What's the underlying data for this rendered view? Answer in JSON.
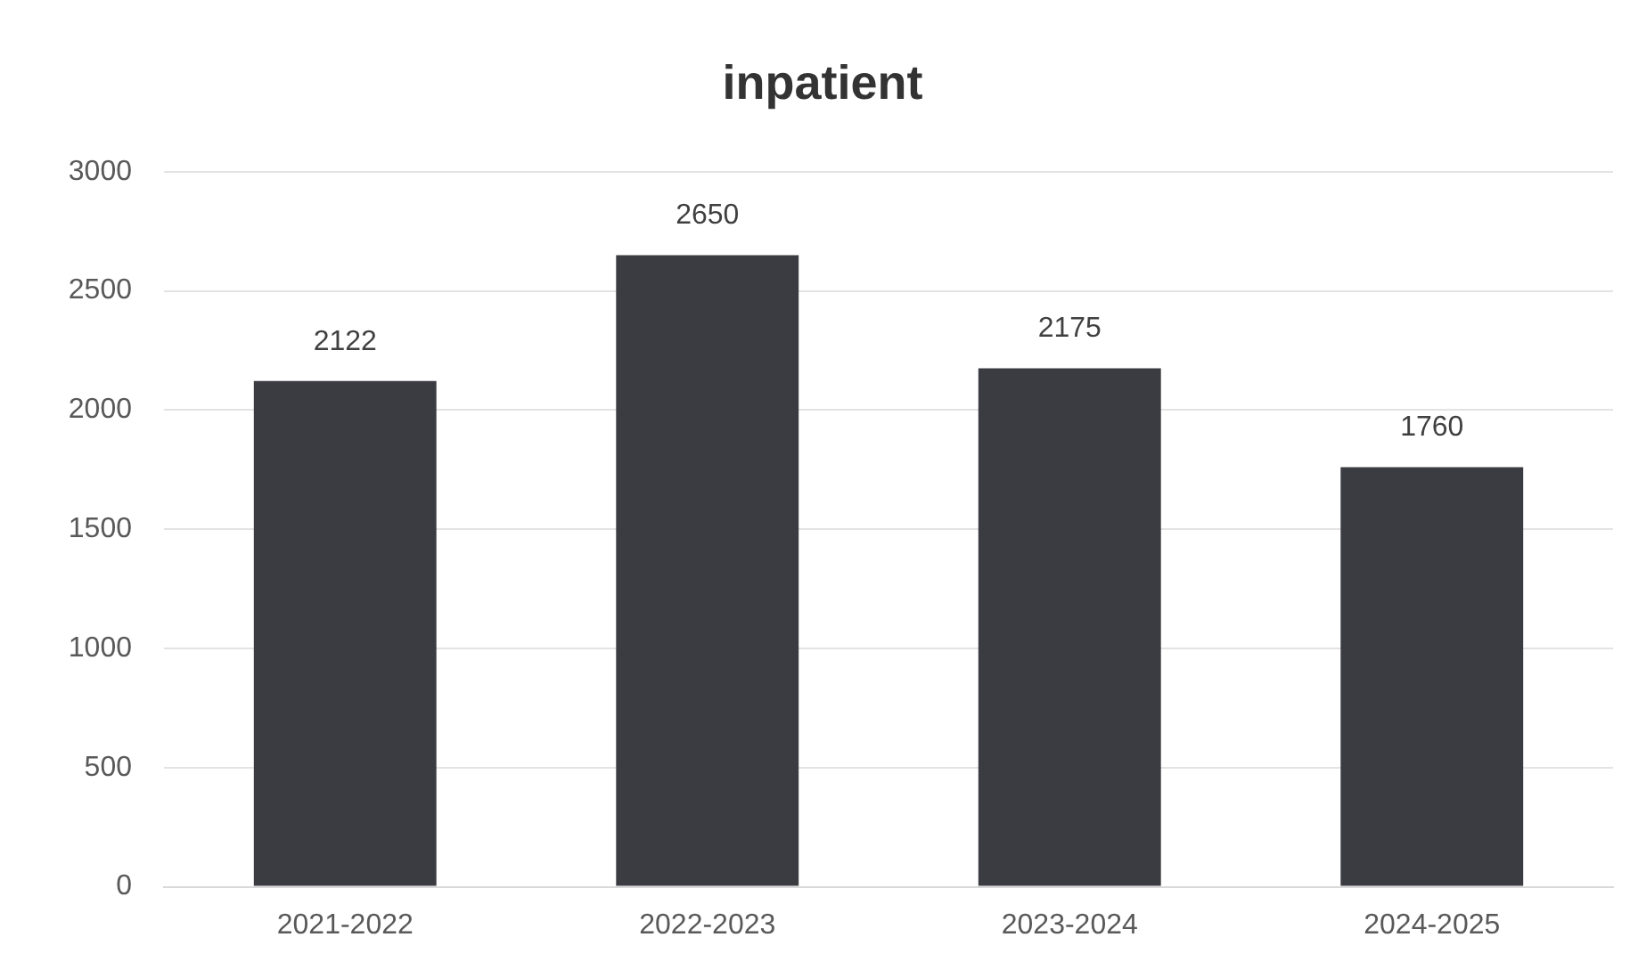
{
  "chart_data": {
    "type": "bar",
    "title": "inpatient",
    "categories": [
      "2021-2022",
      "2022-2023",
      "2023-2024",
      "2024-2025"
    ],
    "values": [
      2122,
      2650,
      2175,
      1760
    ],
    "color": "#3b3b42",
    "ylim": [
      0,
      3000
    ],
    "yticks": [
      0,
      500,
      1000,
      1500,
      2000,
      2500,
      3000
    ],
    "grid": "y",
    "data_labels": true
  }
}
